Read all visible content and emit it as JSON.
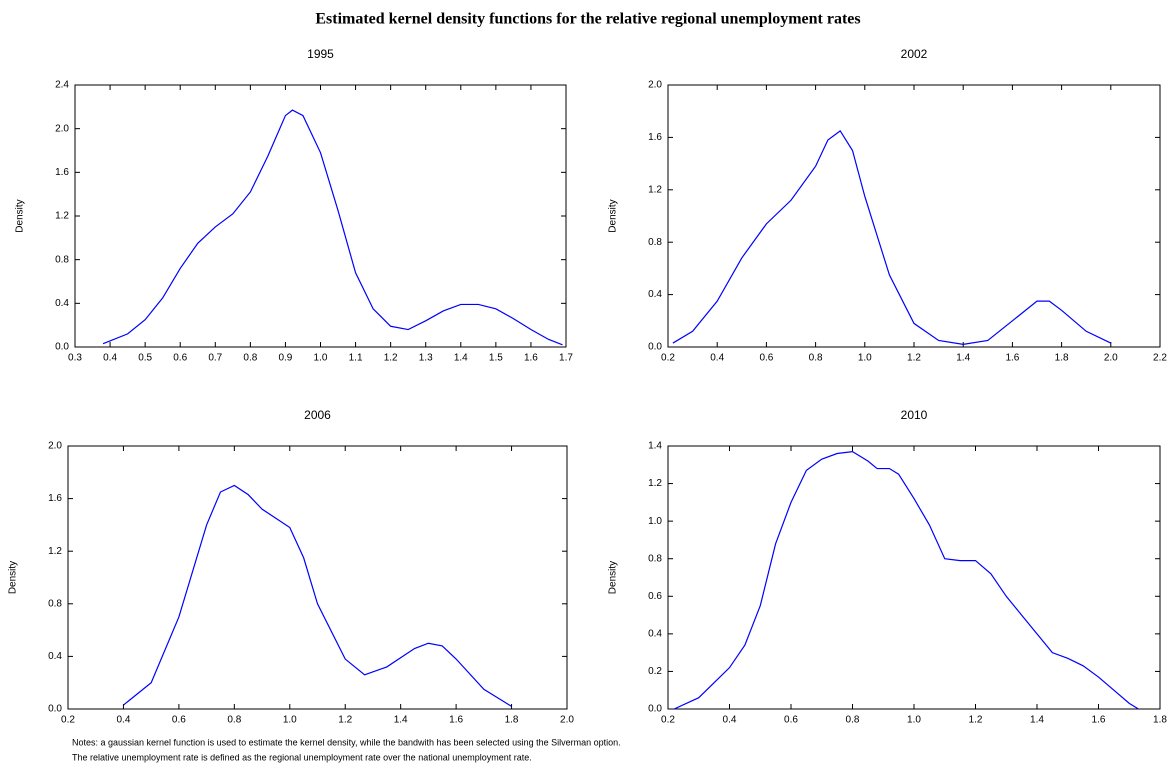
{
  "title": "Estimated kernel density functions for the relative regional unemployment rates",
  "notes": [
    "Notes: a gaussian kernel function is used to estimate the kernel density, while the bandwith has been selected using the Silverman option.",
    "The relative unemployment rate is defined as the regional unemployment rate over the national unemployment rate."
  ],
  "chart_data": [
    {
      "type": "line",
      "title": "1995",
      "y_label": "Density",
      "x": [
        0.38,
        0.45,
        0.5,
        0.55,
        0.6,
        0.65,
        0.7,
        0.75,
        0.8,
        0.85,
        0.9,
        0.92,
        0.95,
        1.0,
        1.05,
        1.1,
        1.15,
        1.2,
        1.25,
        1.3,
        1.35,
        1.4,
        1.45,
        1.5,
        1.55,
        1.6,
        1.65,
        1.69
      ],
      "series": [
        {
          "color": "#0000ff",
          "values": [
            0.03,
            0.12,
            0.25,
            0.45,
            0.72,
            0.95,
            1.1,
            1.22,
            1.42,
            1.75,
            2.12,
            2.17,
            2.12,
            1.78,
            1.25,
            0.68,
            0.35,
            0.19,
            0.16,
            0.24,
            0.33,
            0.39,
            0.39,
            0.35,
            0.26,
            0.16,
            0.07,
            0.02
          ]
        }
      ],
      "xlim": [
        0.3,
        1.7
      ],
      "xticks": [
        0.3,
        0.4,
        0.5,
        0.6,
        0.7,
        0.8,
        0.9,
        {
          "value": 1,
          "label": "1.0"
        },
        1.1,
        1.2,
        1.3,
        1.4,
        1.5,
        1.6,
        1.7
      ],
      "ylim": [
        0,
        2.4
      ],
      "yticks": [
        {
          "value": 0,
          "label": "0.0"
        },
        0.4,
        0.8,
        1.2,
        1.6,
        {
          "value": 2,
          "label": "2.0"
        },
        2.4
      ]
    },
    {
      "type": "line",
      "title": "2002",
      "y_label": "Density",
      "x": [
        0.22,
        0.3,
        0.4,
        0.5,
        0.6,
        0.7,
        0.8,
        0.85,
        0.9,
        0.95,
        1.0,
        1.1,
        1.2,
        1.3,
        1.4,
        1.5,
        1.6,
        1.7,
        1.75,
        1.8,
        1.9,
        2.0
      ],
      "series": [
        {
          "color": "#0000ff",
          "values": [
            0.03,
            0.12,
            0.35,
            0.68,
            0.94,
            1.12,
            1.38,
            1.58,
            1.65,
            1.5,
            1.15,
            0.55,
            0.18,
            0.05,
            0.02,
            0.05,
            0.2,
            0.35,
            0.35,
            0.28,
            0.12,
            0.03
          ]
        }
      ],
      "xlim": [
        0.2,
        2.2
      ],
      "xticks": [
        0.2,
        0.4,
        0.6,
        0.8,
        {
          "value": 1,
          "label": "1.0"
        },
        1.2,
        1.4,
        1.6,
        1.8,
        {
          "value": 2,
          "label": "2.0"
        },
        2.2
      ],
      "ylim": [
        0,
        2
      ],
      "yticks": [
        {
          "value": 0,
          "label": "0.0"
        },
        0.4,
        0.8,
        1.2,
        1.6,
        {
          "value": 2,
          "label": "2.0"
        }
      ]
    },
    {
      "type": "line",
      "title": "2006",
      "y_label": "Density",
      "x": [
        0.4,
        0.5,
        0.6,
        0.7,
        0.75,
        0.8,
        0.85,
        0.9,
        1.0,
        1.05,
        1.1,
        1.2,
        1.27,
        1.35,
        1.45,
        1.5,
        1.55,
        1.6,
        1.7,
        1.8
      ],
      "series": [
        {
          "color": "#0000ff",
          "values": [
            0.03,
            0.2,
            0.7,
            1.4,
            1.65,
            1.7,
            1.63,
            1.52,
            1.38,
            1.15,
            0.8,
            0.38,
            0.26,
            0.32,
            0.46,
            0.5,
            0.48,
            0.38,
            0.15,
            0.02
          ]
        }
      ],
      "xlim": [
        0.2,
        2
      ],
      "xticks": [
        0.2,
        0.4,
        0.6,
        0.8,
        {
          "value": 1,
          "label": "1.0"
        },
        1.2,
        1.4,
        1.6,
        1.8,
        {
          "value": 2,
          "label": "2.0"
        }
      ],
      "ylim": [
        0,
        2
      ],
      "yticks": [
        {
          "value": 0,
          "label": "0.0"
        },
        0.4,
        0.8,
        1.2,
        1.6,
        {
          "value": 2,
          "label": "2.0"
        }
      ]
    },
    {
      "type": "line",
      "title": "2010",
      "y_label": "Density",
      "x": [
        0.22,
        0.3,
        0.35,
        0.4,
        0.45,
        0.5,
        0.55,
        0.6,
        0.65,
        0.7,
        0.75,
        0.8,
        0.85,
        0.88,
        0.92,
        0.95,
        1.0,
        1.05,
        1.1,
        1.15,
        1.2,
        1.25,
        1.3,
        1.35,
        1.4,
        1.45,
        1.5,
        1.55,
        1.6,
        1.65,
        1.7,
        1.73
      ],
      "series": [
        {
          "color": "#0000ff",
          "values": [
            0,
            0.06,
            0.14,
            0.22,
            0.34,
            0.55,
            0.88,
            1.1,
            1.27,
            1.33,
            1.36,
            1.37,
            1.32,
            1.28,
            1.28,
            1.25,
            1.12,
            0.98,
            0.8,
            0.79,
            0.79,
            0.72,
            0.6,
            0.5,
            0.4,
            0.3,
            0.27,
            0.23,
            0.17,
            0.1,
            0.03,
            0
          ]
        }
      ],
      "xlim": [
        0.2,
        1.8
      ],
      "xticks": [
        0.2,
        0.4,
        0.6,
        0.8,
        {
          "value": 1,
          "label": "1.0"
        },
        1.2,
        1.4,
        1.6,
        1.8
      ],
      "ylim": [
        0,
        1.4
      ],
      "yticks": [
        {
          "value": 0,
          "label": "0.0"
        },
        0.2,
        0.4,
        0.6,
        0.8,
        {
          "value": 1,
          "label": "1.0"
        },
        1.2,
        1.4
      ]
    }
  ]
}
